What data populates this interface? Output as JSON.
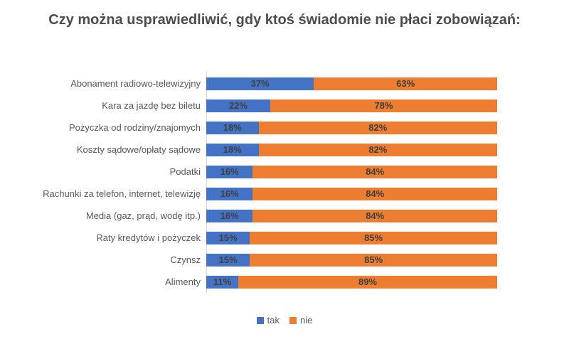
{
  "chart_data": {
    "type": "bar",
    "orientation": "horizontal",
    "stacked": true,
    "title": "Czy można usprawiedliwić, gdy ktoś świadomie nie płaci zobowiązań:",
    "categories": [
      "Abonament radiowo-telewizyjny",
      "Kara za jazdę bez biletu",
      "Pożyczka od rodziny/znajomych",
      "Koszty sądowe/opłaty sądowe",
      "Podatki",
      "Rachunki za telefon, internet, telewizję",
      "Media (gaz, prąd, wodę itp.)",
      "Raty kredytów i pożyczek",
      "Czynsz",
      "Alimenty"
    ],
    "series": [
      {
        "name": "tak",
        "color": "#4472C4",
        "values": [
          37,
          22,
          18,
          18,
          16,
          16,
          16,
          15,
          15,
          11
        ]
      },
      {
        "name": "nie",
        "color": "#ED7D31",
        "values": [
          63,
          78,
          82,
          82,
          84,
          84,
          84,
          85,
          85,
          89
        ]
      }
    ],
    "value_format": "percent",
    "data_labels": true,
    "xlim": [
      0,
      100
    ],
    "grid": false,
    "legend_position": "bottom",
    "colors": {
      "title_text": "#4d4d4d",
      "category_text": "#595959",
      "data_label_text": "#404040",
      "axis_line": "#d9d9d9",
      "background": "#ffffff"
    }
  }
}
